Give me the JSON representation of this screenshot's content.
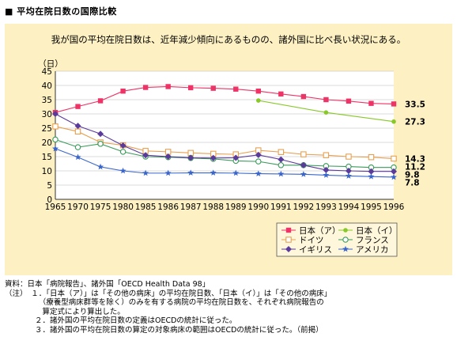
{
  "header": {
    "section_title": "■ 平均在院日数の国際比較",
    "subtitle": "我が国の平均在院日数は、近年減少傾向にあるものの、諸外国に比べ長い状況にある。"
  },
  "chart_data": {
    "type": "line",
    "ylabel": "（日）",
    "ylim": [
      0,
      45
    ],
    "yticks": [
      0,
      5,
      10,
      15,
      20,
      25,
      30,
      35,
      40,
      45
    ],
    "grid": true,
    "legend_position": "bottom-right",
    "categories": [
      "1965",
      "1970",
      "1975",
      "1980",
      "1985",
      "1986",
      "1987",
      "1988",
      "1989",
      "1990",
      "1991",
      "1992",
      "1993",
      "1994",
      "1995",
      "1996"
    ],
    "series": [
      {
        "name": "日本（ア）",
        "color": "#ee3366",
        "marker": "square",
        "end_label": "33.5",
        "values": [
          30.5,
          32.6,
          34.6,
          38.0,
          39.3,
          39.6,
          39.2,
          39.0,
          38.7,
          38.0,
          37.0,
          36.1,
          35.0,
          34.5,
          33.7,
          33.5
        ]
      },
      {
        "name": "日本（イ）",
        "color": "#88c828",
        "marker": "dot",
        "end_label": "27.3",
        "values": [
          null,
          null,
          null,
          null,
          null,
          null,
          null,
          null,
          null,
          34.7,
          null,
          null,
          30.5,
          null,
          null,
          27.3
        ]
      },
      {
        "name": "ドイツ",
        "color": "#e8a050",
        "marker": "open-square",
        "end_label": "14.3",
        "values": [
          25.6,
          23.8,
          20.0,
          19.0,
          17.0,
          16.7,
          16.3,
          16.0,
          15.8,
          17.2,
          16.6,
          15.8,
          15.5,
          15.0,
          14.8,
          14.3
        ]
      },
      {
        "name": "フランス",
        "color": "#3a9a5a",
        "marker": "open-circle",
        "end_label": "11.2",
        "values": [
          21.0,
          18.3,
          19.5,
          16.7,
          15.0,
          14.8,
          14.5,
          14.2,
          13.5,
          13.3,
          12.0,
          12.0,
          11.7,
          11.5,
          11.2,
          11.2
        ]
      },
      {
        "name": "イギリス",
        "color": "#5a3a9a",
        "marker": "diamond",
        "end_label": "9.8",
        "values": [
          30.0,
          25.8,
          23.0,
          18.9,
          15.5,
          15.0,
          14.6,
          14.5,
          14.6,
          15.6,
          14.0,
          12.0,
          10.3,
          10.0,
          9.8,
          9.8
        ]
      },
      {
        "name": "アメリカ",
        "color": "#3a66cc",
        "marker": "star",
        "end_label": "7.8",
        "values": [
          17.8,
          14.8,
          11.4,
          10.0,
          9.2,
          9.2,
          9.3,
          9.3,
          9.2,
          9.0,
          8.9,
          8.8,
          8.5,
          8.2,
          8.0,
          7.8
        ]
      }
    ]
  },
  "notes": {
    "source": "資料：日本「病院報告」、諸外国「OECD Health Data 98」",
    "n1a": "（注）　１．「日本（ア）」は「その他の病床」の平均在院日数、「日本（イ）」は「その他の病床」",
    "n1b": "　　　　　（療養型病床群等を除く）のみを有する病院の平均在院日数を、それぞれ病院報告の",
    "n1c": "　　　　　算定式により算出した。",
    "n2": "　　　　２．諸外国の平均在院日数の定義はOECDの統計に従った。",
    "n3": "　　　　３．諸外国の平均在院日数の算定の対象病床の範囲はOECDの統計に従った。（前掲）"
  }
}
